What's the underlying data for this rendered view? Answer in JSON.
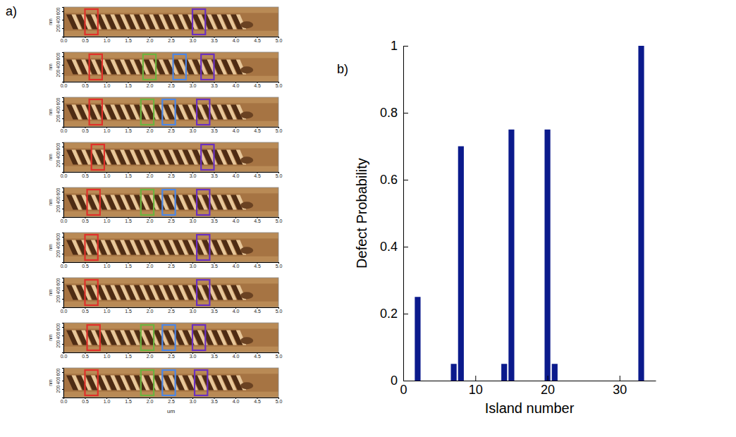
{
  "chart_data": [
    {
      "type": "image",
      "panel_label": "a)",
      "x_label": "um",
      "y_label": "nm",
      "xlim": [
        0,
        5
      ],
      "ylim": [
        0,
        700
      ],
      "xticks": [
        {
          "value": 0,
          "label": "0.0"
        },
        0.5,
        {
          "value": 1,
          "label": "1.0"
        },
        1.5,
        {
          "value": 2,
          "label": "2.0"
        },
        2.5,
        {
          "value": 3,
          "label": "3.0"
        },
        3.5,
        {
          "value": 4,
          "label": "4.0"
        },
        4.5,
        {
          "value": 5,
          "label": "5.0"
        }
      ],
      "yticks": [
        200,
        400,
        600
      ],
      "images": [
        {
          "boxes": [
            {
              "color": "#e0302a",
              "x": [
                0.5,
                0.8
              ],
              "y": [
                50,
                650
              ]
            },
            {
              "color": "#6a2fc0",
              "x": [
                3.0,
                3.3
              ],
              "y": [
                50,
                650
              ]
            }
          ]
        },
        {
          "boxes": [
            {
              "color": "#e0302a",
              "x": [
                0.6,
                0.9
              ],
              "y": [
                50,
                650
              ]
            },
            {
              "color": "#6cb33f",
              "x": [
                1.85,
                2.15
              ],
              "y": [
                50,
                650
              ]
            },
            {
              "color": "#4a86e8",
              "x": [
                2.55,
                2.85
              ],
              "y": [
                50,
                650
              ]
            },
            {
              "color": "#6a2fc0",
              "x": [
                3.2,
                3.5
              ],
              "y": [
                50,
                650
              ]
            }
          ]
        },
        {
          "boxes": [
            {
              "color": "#e0302a",
              "x": [
                0.6,
                0.9
              ],
              "y": [
                50,
                650
              ]
            },
            {
              "color": "#6cb33f",
              "x": [
                1.8,
                2.1
              ],
              "y": [
                50,
                650
              ]
            },
            {
              "color": "#4a86e8",
              "x": [
                2.3,
                2.6
              ],
              "y": [
                50,
                650
              ]
            },
            {
              "color": "#6a2fc0",
              "x": [
                3.1,
                3.4
              ],
              "y": [
                50,
                650
              ]
            }
          ]
        },
        {
          "boxes": [
            {
              "color": "#e0302a",
              "x": [
                0.65,
                0.95
              ],
              "y": [
                50,
                650
              ]
            },
            {
              "color": "#6a2fc0",
              "x": [
                3.2,
                3.5
              ],
              "y": [
                50,
                650
              ]
            }
          ]
        },
        {
          "boxes": [
            {
              "color": "#e0302a",
              "x": [
                0.55,
                0.85
              ],
              "y": [
                50,
                650
              ]
            },
            {
              "color": "#6cb33f",
              "x": [
                1.8,
                2.1
              ],
              "y": [
                50,
                650
              ]
            },
            {
              "color": "#4a86e8",
              "x": [
                2.3,
                2.6
              ],
              "y": [
                50,
                650
              ]
            },
            {
              "color": "#6a2fc0",
              "x": [
                3.1,
                3.4
              ],
              "y": [
                50,
                650
              ]
            }
          ]
        },
        {
          "boxes": [
            {
              "color": "#e0302a",
              "x": [
                0.5,
                0.8
              ],
              "y": [
                50,
                650
              ]
            },
            {
              "color": "#6a2fc0",
              "x": [
                3.1,
                3.4
              ],
              "y": [
                50,
                650
              ]
            }
          ]
        },
        {
          "boxes": [
            {
              "color": "#e0302a",
              "x": [
                0.5,
                0.8
              ],
              "y": [
                50,
                650
              ]
            },
            {
              "color": "#6a2fc0",
              "x": [
                3.1,
                3.4
              ],
              "y": [
                50,
                650
              ]
            }
          ]
        },
        {
          "boxes": [
            {
              "color": "#e0302a",
              "x": [
                0.55,
                0.85
              ],
              "y": [
                50,
                650
              ]
            },
            {
              "color": "#6cb33f",
              "x": [
                1.8,
                2.1
              ],
              "y": [
                50,
                650
              ]
            },
            {
              "color": "#4a86e8",
              "x": [
                2.3,
                2.6
              ],
              "y": [
                50,
                650
              ]
            },
            {
              "color": "#6a2fc0",
              "x": [
                3.0,
                3.3
              ],
              "y": [
                50,
                650
              ]
            }
          ]
        },
        {
          "boxes": [
            {
              "color": "#e0302a",
              "x": [
                0.5,
                0.8
              ],
              "y": [
                50,
                650
              ]
            },
            {
              "color": "#6cb33f",
              "x": [
                1.8,
                2.1
              ],
              "y": [
                50,
                650
              ]
            },
            {
              "color": "#4a86e8",
              "x": [
                2.3,
                2.6
              ],
              "y": [
                50,
                650
              ]
            },
            {
              "color": "#6a2fc0",
              "x": [
                3.05,
                3.35
              ],
              "y": [
                50,
                650
              ]
            }
          ]
        }
      ]
    },
    {
      "type": "bar",
      "panel_label": "b)",
      "x_label": "Island number",
      "y_label": "Defect Probability",
      "x": [
        2,
        7,
        8,
        14,
        15,
        20,
        21,
        33
      ],
      "values": [
        0.25,
        0.05,
        0.7,
        0.05,
        0.75,
        0.75,
        0.05,
        1
      ],
      "color": "#0b1a8c",
      "xlim": [
        0,
        35
      ],
      "ylim": [
        0,
        1
      ],
      "xticks": [
        0,
        10,
        20,
        30
      ],
      "yticks": [
        0,
        0.2,
        0.4,
        0.6,
        0.8,
        1
      ]
    }
  ]
}
